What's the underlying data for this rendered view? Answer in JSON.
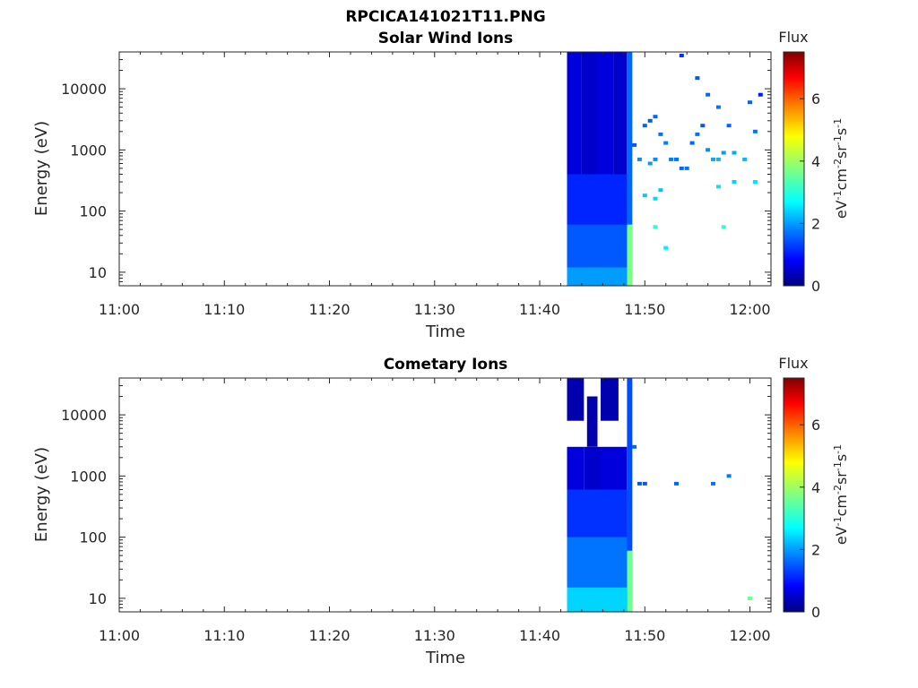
{
  "figure_title": "RPCICA141021T11.PNG",
  "colormap": [
    "#000080",
    "#0000ff",
    "#0080ff",
    "#00ffff",
    "#80ff80",
    "#ffff00",
    "#ff8000",
    "#ff0000",
    "#800000"
  ],
  "chart_data": [
    {
      "type": "heatmap",
      "title": "Solar Wind Ions",
      "xlabel": "Time",
      "ylabel": "Energy (eV)",
      "x_ticks": [
        "11:00",
        "11:10",
        "11:20",
        "11:30",
        "11:40",
        "11:50",
        "12:00"
      ],
      "x_range_minutes": [
        0,
        62
      ],
      "y_ticks": [
        "10",
        "100",
        "1000",
        "10000"
      ],
      "y_scale": "log",
      "y_range": [
        6,
        40000
      ],
      "colorbar": {
        "label": "Flux",
        "units": "eV-1cm-2sr-1s-1",
        "ticks": [
          "0",
          "2",
          "4",
          "6"
        ],
        "range": [
          0,
          7.5
        ]
      },
      "blocks": [
        {
          "t0": 42.6,
          "t1": 44.0,
          "e0": 6,
          "e1": 40000,
          "value": 0.6
        },
        {
          "t0": 44.0,
          "t1": 45.5,
          "e0": 6,
          "e1": 40000,
          "value": 0.5
        },
        {
          "t0": 45.5,
          "t1": 47.0,
          "e0": 6,
          "e1": 40000,
          "value": 0.6
        },
        {
          "t0": 47.0,
          "t1": 48.3,
          "e0": 6,
          "e1": 40000,
          "value": 0.5
        },
        {
          "t0": 42.6,
          "t1": 48.3,
          "e0": 6,
          "e1": 400,
          "value": 1.1
        },
        {
          "t0": 42.6,
          "t1": 48.3,
          "e0": 6,
          "e1": 60,
          "value": 1.5
        },
        {
          "t0": 42.6,
          "t1": 48.3,
          "e0": 6,
          "e1": 12,
          "value": 2.0
        },
        {
          "t0": 48.3,
          "t1": 48.8,
          "e0": 6,
          "e1": 40000,
          "value": 1.6
        },
        {
          "t0": 48.3,
          "t1": 48.8,
          "e0": 6,
          "e1": 60,
          "value": 3.7
        }
      ],
      "scatter": [
        {
          "t": 50.0,
          "e": 2500,
          "value": 1.6
        },
        {
          "t": 50.5,
          "e": 3000,
          "value": 1.5
        },
        {
          "t": 51.0,
          "e": 3500,
          "value": 1.6
        },
        {
          "t": 51.5,
          "e": 1800,
          "value": 1.7
        },
        {
          "t": 52.0,
          "e": 1300,
          "value": 1.8
        },
        {
          "t": 49.0,
          "e": 1200,
          "value": 1.5
        },
        {
          "t": 49.5,
          "e": 700,
          "value": 1.9
        },
        {
          "t": 50.5,
          "e": 600,
          "value": 2.0
        },
        {
          "t": 51.0,
          "e": 700,
          "value": 1.9
        },
        {
          "t": 52.5,
          "e": 700,
          "value": 1.8
        },
        {
          "t": 53.0,
          "e": 700,
          "value": 1.7
        },
        {
          "t": 53.5,
          "e": 500,
          "value": 1.6
        },
        {
          "t": 54.0,
          "e": 500,
          "value": 1.7
        },
        {
          "t": 54.5,
          "e": 1300,
          "value": 1.6
        },
        {
          "t": 55.0,
          "e": 1800,
          "value": 1.7
        },
        {
          "t": 55.5,
          "e": 2500,
          "value": 1.5
        },
        {
          "t": 56.0,
          "e": 1000,
          "value": 1.9
        },
        {
          "t": 56.5,
          "e": 700,
          "value": 2.1
        },
        {
          "t": 57.0,
          "e": 700,
          "value": 2.2
        },
        {
          "t": 57.5,
          "e": 900,
          "value": 2.0
        },
        {
          "t": 58.0,
          "e": 2500,
          "value": 1.6
        },
        {
          "t": 58.5,
          "e": 900,
          "value": 2.1
        },
        {
          "t": 59.5,
          "e": 700,
          "value": 2.2
        },
        {
          "t": 60.5,
          "e": 2000,
          "value": 1.7
        },
        {
          "t": 53.5,
          "e": 35000,
          "value": 1.2
        },
        {
          "t": 55.0,
          "e": 15000,
          "value": 1.5
        },
        {
          "t": 56.0,
          "e": 8000,
          "value": 1.6
        },
        {
          "t": 57.0,
          "e": 5000,
          "value": 1.7
        },
        {
          "t": 60.0,
          "e": 6000,
          "value": 1.6
        },
        {
          "t": 61.0,
          "e": 8000,
          "value": 1.0
        },
        {
          "t": 50.0,
          "e": 180,
          "value": 2.3
        },
        {
          "t": 51.0,
          "e": 160,
          "value": 2.4
        },
        {
          "t": 51.5,
          "e": 220,
          "value": 2.3
        },
        {
          "t": 51.0,
          "e": 55,
          "value": 3.0
        },
        {
          "t": 52.0,
          "e": 25,
          "value": 2.6
        },
        {
          "t": 57.5,
          "e": 55,
          "value": 3.1
        },
        {
          "t": 57.0,
          "e": 250,
          "value": 2.5
        },
        {
          "t": 58.5,
          "e": 300,
          "value": 2.4
        },
        {
          "t": 60.5,
          "e": 300,
          "value": 2.5
        }
      ]
    },
    {
      "type": "heatmap",
      "title": "Cometary Ions",
      "xlabel": "Time",
      "ylabel": "Energy (eV)",
      "x_ticks": [
        "11:00",
        "11:10",
        "11:20",
        "11:30",
        "11:40",
        "11:50",
        "12:00"
      ],
      "x_range_minutes": [
        0,
        62
      ],
      "y_ticks": [
        "10",
        "100",
        "1000",
        "10000"
      ],
      "y_scale": "log",
      "y_range": [
        6,
        40000
      ],
      "colorbar": {
        "label": "Flux",
        "units": "eV-1cm-2sr-1s-1",
        "ticks": [
          "0",
          "2",
          "4",
          "6"
        ],
        "range": [
          0,
          7.5
        ]
      },
      "blocks": [
        {
          "t0": 42.6,
          "t1": 44.2,
          "e0": 6,
          "e1": 3000,
          "value": 0.6
        },
        {
          "t0": 44.2,
          "t1": 45.8,
          "e0": 6,
          "e1": 3000,
          "value": 0.5
        },
        {
          "t0": 45.8,
          "t1": 48.3,
          "e0": 6,
          "e1": 3000,
          "value": 0.6
        },
        {
          "t0": 42.6,
          "t1": 44.2,
          "e0": 8000,
          "e1": 40000,
          "value": 0.3
        },
        {
          "t0": 45.8,
          "t1": 47.5,
          "e0": 8000,
          "e1": 40000,
          "value": 0.3
        },
        {
          "t0": 44.5,
          "t1": 45.5,
          "e0": 3000,
          "e1": 20000,
          "value": 0.3
        },
        {
          "t0": 42.6,
          "t1": 48.3,
          "e0": 6,
          "e1": 600,
          "value": 1.2
        },
        {
          "t0": 42.6,
          "t1": 48.3,
          "e0": 6,
          "e1": 100,
          "value": 1.7
        },
        {
          "t0": 42.6,
          "t1": 48.3,
          "e0": 6,
          "e1": 15,
          "value": 2.4
        },
        {
          "t0": 48.3,
          "t1": 48.8,
          "e0": 6,
          "e1": 40000,
          "value": 1.4
        },
        {
          "t0": 48.3,
          "t1": 48.8,
          "e0": 6,
          "e1": 60,
          "value": 3.6
        }
      ],
      "scatter": [
        {
          "t": 49.0,
          "e": 3000,
          "value": 1.6
        },
        {
          "t": 49.5,
          "e": 750,
          "value": 1.5
        },
        {
          "t": 50.0,
          "e": 750,
          "value": 1.5
        },
        {
          "t": 53.0,
          "e": 750,
          "value": 1.6
        },
        {
          "t": 56.5,
          "e": 750,
          "value": 1.7
        },
        {
          "t": 58.0,
          "e": 1000,
          "value": 1.8
        },
        {
          "t": 60.0,
          "e": 10,
          "value": 3.6
        }
      ]
    }
  ]
}
